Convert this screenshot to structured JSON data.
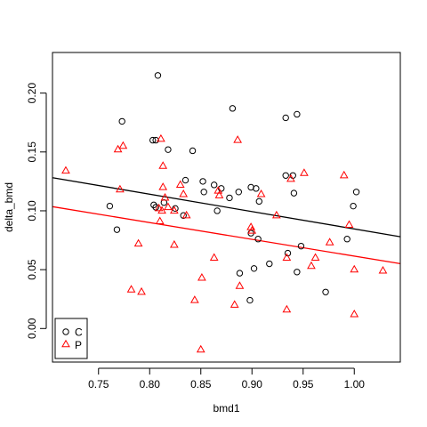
{
  "chart_data": {
    "type": "scatter",
    "xlabel": "bmd1",
    "ylabel": "delta_bmd",
    "xlim": [
      0.705,
      1.045
    ],
    "ylim": [
      -0.0285,
      0.2345
    ],
    "x_ticks": [
      0.75,
      0.8,
      0.85,
      0.9,
      0.95,
      1.0
    ],
    "x_tick_labels": [
      "0.75",
      "0.80",
      "0.85",
      "0.90",
      "0.95",
      "1.00"
    ],
    "y_ticks": [
      0.0,
      0.05,
      0.1,
      0.15,
      0.2
    ],
    "y_tick_labels": [
      "0.00",
      "0.05",
      "0.10",
      "0.15",
      "0.20"
    ],
    "legend_position": "bottom-left",
    "series": [
      {
        "name": "C",
        "color": "#000000",
        "marker": "circle",
        "points": [
          [
            0.808,
            0.215
          ],
          [
            0.773,
            0.176
          ],
          [
            0.881,
            0.187
          ],
          [
            0.933,
            0.179
          ],
          [
            0.944,
            0.182
          ],
          [
            0.803,
            0.16
          ],
          [
            0.806,
            0.16
          ],
          [
            0.818,
            0.152
          ],
          [
            0.842,
            0.151
          ],
          [
            0.933,
            0.13
          ],
          [
            0.94,
            0.13
          ],
          [
            0.835,
            0.126
          ],
          [
            0.852,
            0.125
          ],
          [
            0.863,
            0.122
          ],
          [
            0.87,
            0.119
          ],
          [
            0.887,
            0.116
          ],
          [
            0.899,
            0.12
          ],
          [
            0.904,
            0.119
          ],
          [
            0.853,
            0.116
          ],
          [
            0.878,
            0.111
          ],
          [
            0.941,
            0.115
          ],
          [
            1.002,
            0.116
          ],
          [
            0.907,
            0.108
          ],
          [
            0.761,
            0.104
          ],
          [
            0.804,
            0.105
          ],
          [
            0.806,
            0.103
          ],
          [
            0.814,
            0.107
          ],
          [
            0.825,
            0.102
          ],
          [
            0.866,
            0.1
          ],
          [
            0.999,
            0.104
          ],
          [
            0.833,
            0.096
          ],
          [
            0.768,
            0.084
          ],
          [
            0.899,
            0.081
          ],
          [
            0.906,
            0.076
          ],
          [
            0.993,
            0.076
          ],
          [
            0.948,
            0.07
          ],
          [
            0.935,
            0.064
          ],
          [
            0.917,
            0.055
          ],
          [
            0.902,
            0.051
          ],
          [
            0.888,
            0.047
          ],
          [
            0.944,
            0.048
          ],
          [
            0.898,
            0.024
          ],
          [
            0.972,
            0.031
          ]
        ]
      },
      {
        "name": "P",
        "color": "#ff0000",
        "marker": "triangle",
        "points": [
          [
            0.718,
            0.134
          ],
          [
            0.769,
            0.152
          ],
          [
            0.774,
            0.155
          ],
          [
            0.811,
            0.161
          ],
          [
            0.886,
            0.16
          ],
          [
            0.813,
            0.138
          ],
          [
            0.951,
            0.132
          ],
          [
            0.99,
            0.13
          ],
          [
            0.938,
            0.127
          ],
          [
            0.83,
            0.122
          ],
          [
            0.833,
            0.114
          ],
          [
            0.813,
            0.12
          ],
          [
            0.815,
            0.111
          ],
          [
            0.867,
            0.117
          ],
          [
            0.868,
            0.113
          ],
          [
            0.909,
            0.114
          ],
          [
            0.771,
            0.118
          ],
          [
            0.818,
            0.103
          ],
          [
            0.812,
            0.1
          ],
          [
            0.809,
            0.102
          ],
          [
            0.824,
            0.1
          ],
          [
            0.81,
            0.091
          ],
          [
            0.836,
            0.096
          ],
          [
            0.924,
            0.096
          ],
          [
            0.899,
            0.086
          ],
          [
            0.9,
            0.083
          ],
          [
            0.995,
            0.088
          ],
          [
            0.789,
            0.072
          ],
          [
            0.824,
            0.071
          ],
          [
            0.976,
            0.073
          ],
          [
            0.863,
            0.06
          ],
          [
            0.934,
            0.06
          ],
          [
            0.962,
            0.06
          ],
          [
            0.958,
            0.053
          ],
          [
            1.0,
            0.05
          ],
          [
            1.028,
            0.049
          ],
          [
            0.851,
            0.043
          ],
          [
            0.888,
            0.036
          ],
          [
            0.782,
            0.033
          ],
          [
            0.792,
            0.031
          ],
          [
            0.844,
            0.024
          ],
          [
            0.883,
            0.02
          ],
          [
            0.934,
            0.016
          ],
          [
            1.0,
            0.012
          ],
          [
            0.85,
            -0.018
          ]
        ]
      }
    ],
    "lines": [
      {
        "series": "C",
        "color": "#000000",
        "intercept": 0.2322,
        "slope": -0.1476
      },
      {
        "series": "P",
        "color": "#ff0000",
        "intercept": 0.2039,
        "slope": -0.1424
      }
    ]
  }
}
